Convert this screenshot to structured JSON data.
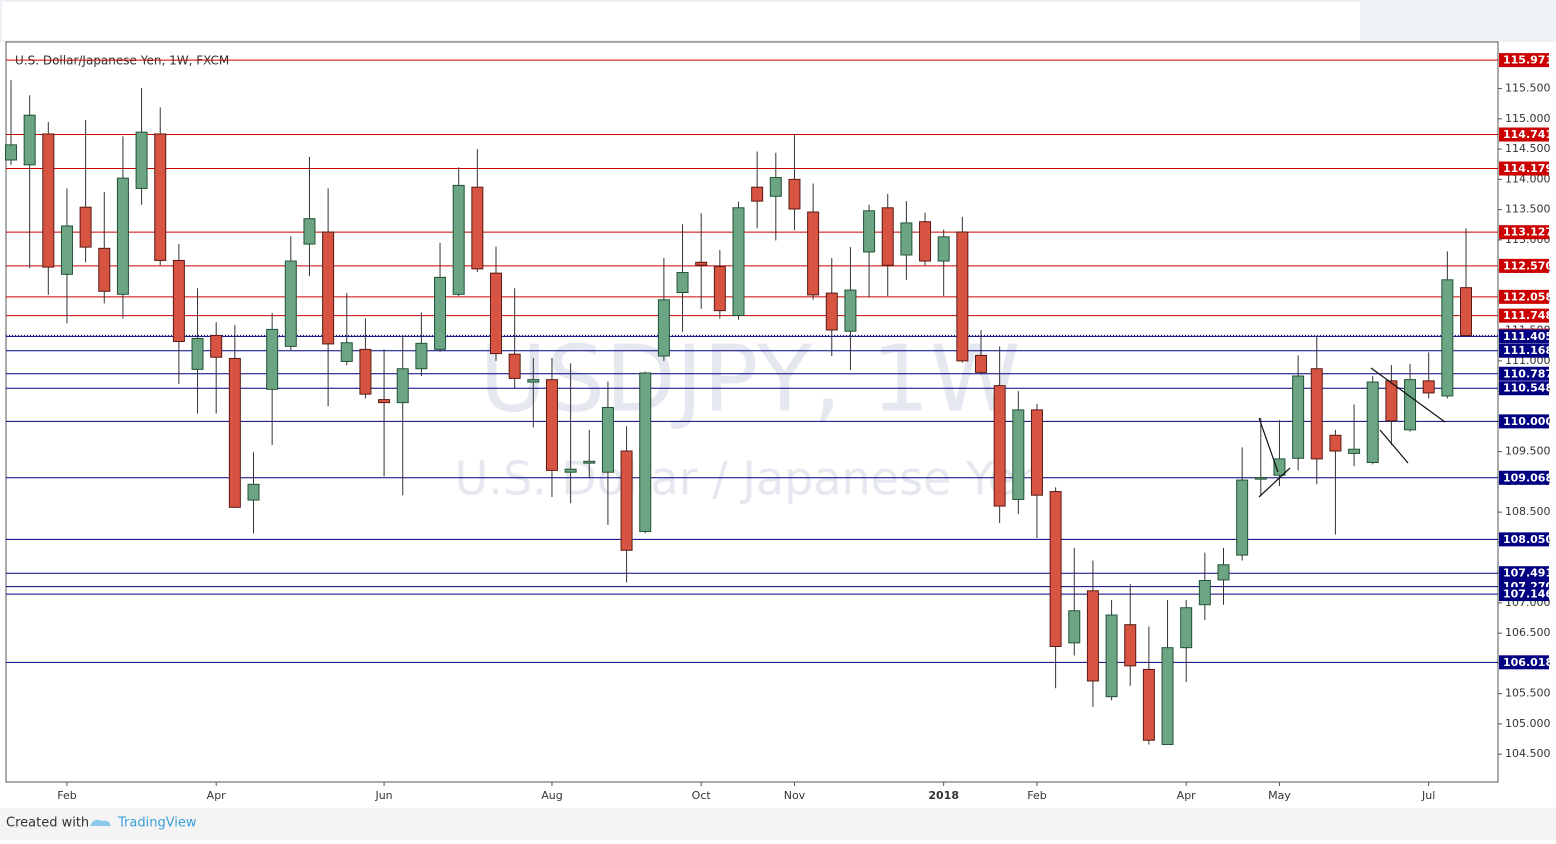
{
  "chart_data": {
    "type": "candlestick",
    "title": "U.S. Dollar/Japanese Yen, 1W, FXCM",
    "watermark": "USDJPY, 1W",
    "watermark_subtitle": "U.S. Dollar / Japanese Yen",
    "footer_text": "Created with",
    "footer_brand": "TradingView",
    "up_color": "#6ba583",
    "down_color": "#d75442",
    "categories": [
      null,
      null,
      null,
      "Feb",
      null,
      null,
      null,
      null,
      null,
      null,
      null,
      "Apr",
      null,
      null,
      null,
      null,
      null,
      null,
      null,
      null,
      "Jun",
      null,
      null,
      null,
      null,
      null,
      null,
      null,
      null,
      "Aug",
      null,
      null,
      null,
      null,
      null,
      null,
      null,
      "Oct",
      null,
      null,
      null,
      null,
      "Nov",
      null,
      null,
      null,
      null,
      null,
      null,
      null,
      "2018",
      null,
      null,
      null,
      null,
      "Feb",
      null,
      null,
      null,
      null,
      null,
      null,
      null,
      "Apr",
      null,
      null,
      null,
      null,
      "May",
      null,
      null,
      null,
      null,
      null,
      null,
      null,
      "Jul",
      null,
      null
    ],
    "open": [
      114.32,
      114.24,
      114.75,
      112.43,
      113.54,
      112.86,
      112.1,
      113.85,
      114.75,
      112.66,
      110.86,
      111.42,
      111.04,
      108.7,
      110.53,
      111.24,
      112.93,
      113.13,
      110.99,
      111.19,
      110.36,
      110.31,
      110.87,
      111.19,
      112.1,
      113.87,
      112.45,
      111.11,
      110.65,
      110.69,
      109.16,
      109.31,
      109.16,
      109.51,
      108.18,
      111.08,
      112.13,
      112.63,
      112.56,
      111.75,
      113.87,
      113.72,
      114.0,
      113.46,
      112.12,
      111.49,
      112.8,
      113.53,
      112.75,
      113.3,
      112.65,
      113.13,
      111.09,
      110.59,
      108.71,
      110.19,
      108.84,
      106.34,
      107.2,
      105.45,
      106.64,
      105.9,
      104.66,
      106.26,
      106.97,
      107.38,
      107.79,
      109.06,
      109.11,
      109.39,
      110.87,
      109.77,
      109.47,
      109.32,
      110.67,
      109.86,
      110.67,
      110.42,
      112.21
    ],
    "high": [
      115.64,
      115.39,
      114.95,
      113.85,
      114.98,
      113.79,
      114.71,
      115.51,
      115.19,
      112.93,
      112.2,
      111.64,
      111.59,
      109.49,
      111.79,
      113.06,
      114.37,
      113.85,
      112.12,
      111.7,
      111.19,
      111.42,
      111.8,
      112.95,
      114.2,
      114.5,
      112.89,
      112.2,
      111.05,
      111.05,
      110.96,
      109.86,
      110.66,
      109.92,
      110.82,
      112.7,
      113.26,
      113.44,
      112.83,
      113.63,
      114.46,
      114.44,
      114.75,
      113.93,
      112.7,
      112.88,
      113.58,
      113.76,
      113.64,
      113.45,
      113.17,
      113.38,
      111.51,
      111.24,
      110.5,
      110.29,
      108.91,
      107.91,
      107.7,
      107.05,
      107.31,
      106.61,
      107.05,
      107.05,
      107.83,
      107.91,
      109.57,
      110.06,
      110.02,
      111.09,
      111.4,
      109.86,
      110.28,
      110.75,
      110.93,
      110.95,
      111.14,
      112.81,
      113.19
    ],
    "low": [
      114.24,
      112.53,
      112.09,
      111.62,
      112.63,
      111.95,
      111.7,
      113.58,
      112.58,
      110.62,
      110.13,
      110.13,
      108.57,
      108.15,
      109.61,
      111.18,
      112.4,
      110.25,
      110.93,
      110.38,
      109.09,
      108.78,
      110.75,
      111.15,
      112.07,
      112.47,
      111.0,
      110.55,
      109.9,
      108.75,
      108.65,
      109.07,
      108.29,
      107.34,
      108.15,
      111.0,
      111.48,
      111.86,
      111.7,
      111.68,
      113.19,
      112.99,
      113.16,
      112.01,
      111.08,
      110.85,
      112.05,
      112.07,
      112.34,
      112.58,
      112.07,
      110.97,
      110.77,
      108.32,
      108.47,
      108.07,
      105.59,
      106.13,
      105.28,
      105.39,
      105.63,
      104.66,
      104.66,
      105.69,
      106.72,
      106.97,
      107.7,
      108.78,
      108.93,
      109.19,
      108.96,
      108.13,
      109.26,
      109.29,
      109.61,
      109.83,
      110.38,
      110.38,
      111.42
    ],
    "close": [
      114.57,
      115.06,
      112.55,
      113.23,
      112.88,
      112.15,
      114.02,
      114.78,
      112.66,
      111.32,
      111.37,
      111.06,
      108.58,
      108.96,
      111.52,
      112.65,
      113.35,
      111.28,
      111.3,
      110.45,
      110.31,
      110.87,
      111.29,
      112.38,
      113.9,
      112.52,
      111.12,
      110.71,
      110.69,
      109.19,
      109.21,
      109.34,
      110.23,
      107.87,
      110.8,
      112.01,
      112.46,
      112.58,
      111.83,
      113.53,
      113.64,
      114.03,
      113.51,
      112.09,
      111.51,
      112.17,
      113.48,
      112.58,
      113.28,
      112.65,
      113.05,
      111.0,
      110.81,
      108.6,
      110.19,
      108.78,
      106.28,
      106.87,
      105.71,
      106.8,
      105.96,
      104.73,
      106.26,
      106.92,
      107.37,
      107.63,
      109.03,
      109.07,
      109.38,
      110.75,
      109.38,
      109.51,
      109.54,
      110.65,
      110.01,
      110.69,
      110.47,
      112.34,
      111.42
    ],
    "ylim": [
      104.04,
      116.27
    ],
    "yticks": [
      {
        "value": 104.5,
        "label": "104.500"
      },
      {
        "value": 105,
        "label": "105.000"
      },
      {
        "value": 105.5,
        "label": "105.500"
      },
      {
        "value": 106,
        "label": "106.000"
      },
      {
        "value": 106.5,
        "label": "106.500"
      },
      {
        "value": 107,
        "label": "107.000"
      },
      {
        "value": 107.5,
        "label": "107.500"
      },
      {
        "value": 108,
        "label": "108.000"
      },
      {
        "value": 108.5,
        "label": "108.500"
      },
      {
        "value": 109,
        "label": "109.000"
      },
      {
        "value": 109.5,
        "label": "109.500"
      },
      {
        "value": 110,
        "label": "110.000"
      },
      {
        "value": 110.5,
        "label": "110.500"
      },
      {
        "value": 111,
        "label": "111.000"
      },
      {
        "value": 111.5,
        "label": "111.500"
      },
      {
        "value": 112,
        "label": "112.000"
      },
      {
        "value": 112.5,
        "label": "112.500"
      },
      {
        "value": 113,
        "label": "113.000"
      },
      {
        "value": 113.5,
        "label": "113.500"
      },
      {
        "value": 114,
        "label": "114.000"
      },
      {
        "value": 114.5,
        "label": "114.500"
      },
      {
        "value": 115,
        "label": "115.000"
      },
      {
        "value": 115.5,
        "label": "115.500"
      }
    ],
    "levels": [
      {
        "value": 115.971,
        "color": "#cc0000"
      },
      {
        "value": 114.741,
        "color": "#cc0000"
      },
      {
        "value": 114.179,
        "color": "#cc0000"
      },
      {
        "value": 113.127,
        "color": "#cc0000"
      },
      {
        "value": 112.57,
        "label": "112.570",
        "color": "#cc0000"
      },
      {
        "value": 112.058,
        "color": "#cc0000"
      },
      {
        "value": 111.748,
        "color": "#cc0000"
      },
      {
        "value": 111.422,
        "color": "#e05a4a",
        "line_style": "dotted"
      },
      {
        "value": 111.405,
        "color": "#000080"
      },
      {
        "value": 111.168,
        "color": "#000080"
      },
      {
        "value": 110.787,
        "color": "#000080"
      },
      {
        "value": 110.548,
        "color": "#000080"
      },
      {
        "value": 110,
        "label": "110.000",
        "color": "#000080"
      },
      {
        "value": 109.068,
        "color": "#000080"
      },
      {
        "value": 108.05,
        "label": "108.050",
        "color": "#000080"
      },
      {
        "value": 107.491,
        "color": "#000080"
      },
      {
        "value": 107.27,
        "label": "107.270",
        "color": "#000080"
      },
      {
        "value": 107.146,
        "color": "#000080"
      },
      {
        "value": 106.018,
        "color": "#000080"
      }
    ]
  }
}
